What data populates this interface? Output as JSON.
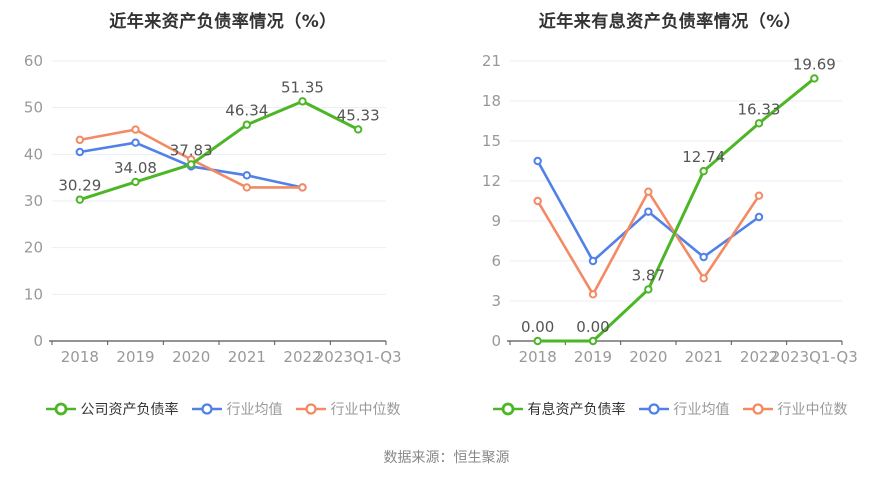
{
  "source_note": "数据来源：恒生聚源",
  "colors": {
    "company": "#4db626",
    "industry_avg": "#5080e8",
    "industry_median": "#f48a64",
    "grid": "#e8eef7",
    "axis": "#555555",
    "tick_label": "#999999",
    "data_label": "#555555",
    "title": "#333333",
    "legend_active": "#333333",
    "legend_inactive": "#999999",
    "background": "#ffffff"
  },
  "chart_data": [
    {
      "type": "line",
      "title": "近年来资产负债率情况（%）",
      "categories": [
        "2018",
        "2019",
        "2020",
        "2021",
        "2022",
        "2023Q1-Q3"
      ],
      "ylim": [
        0,
        60
      ],
      "yticks": [
        0,
        10,
        20,
        30,
        40,
        50,
        60
      ],
      "grid": true,
      "legend_position": "bottom",
      "series": [
        {
          "name": "公司资产负债率",
          "key": "company",
          "values": [
            30.29,
            34.08,
            37.83,
            46.34,
            51.35,
            45.33
          ],
          "labels": [
            "30.29",
            "34.08",
            "37.83",
            "46.34",
            "51.35",
            "45.33"
          ]
        },
        {
          "name": "行业均值",
          "key": "industry_avg",
          "values": [
            40.5,
            42.5,
            37.4,
            35.5,
            32.9,
            null
          ]
        },
        {
          "name": "行业中位数",
          "key": "industry_median",
          "values": [
            43.1,
            45.3,
            38.9,
            32.9,
            32.9,
            null
          ]
        }
      ]
    },
    {
      "type": "line",
      "title": "近年来有息资产负债率情况（%）",
      "categories": [
        "2018",
        "2019",
        "2020",
        "2021",
        "2022",
        "2023Q1-Q3"
      ],
      "ylim": [
        0,
        21
      ],
      "yticks": [
        0,
        3,
        6,
        9,
        12,
        15,
        18,
        21
      ],
      "grid": true,
      "legend_position": "bottom",
      "series": [
        {
          "name": "有息资产负债率",
          "key": "company",
          "values": [
            0,
            0,
            3.87,
            12.74,
            16.33,
            19.69
          ],
          "labels": [
            "0.00",
            "0.00",
            "3.87",
            "12.74",
            "16.33",
            "19.69"
          ]
        },
        {
          "name": "行业均值",
          "key": "industry_avg",
          "values": [
            13.5,
            6.0,
            9.7,
            6.3,
            9.3,
            null
          ]
        },
        {
          "name": "行业中位数",
          "key": "industry_median",
          "values": [
            10.5,
            3.5,
            11.2,
            4.7,
            10.9,
            null
          ]
        }
      ]
    }
  ]
}
